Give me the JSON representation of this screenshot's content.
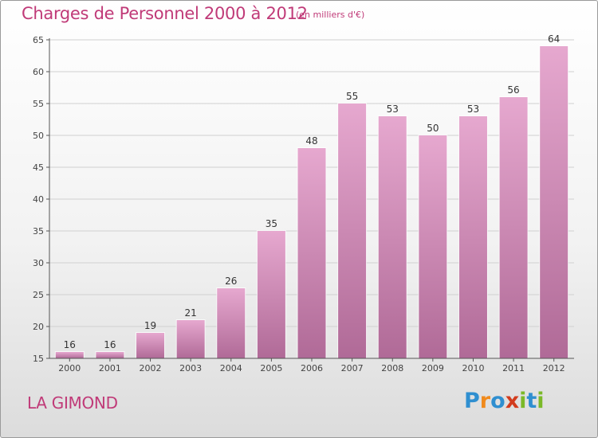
{
  "title": "Charges de Personnel 2000 à 2012",
  "subtitle": "(en milliers d'€)",
  "commune": "LA GIMOND",
  "logo": {
    "text": "Proxiti",
    "letters": [
      {
        "ch": "P",
        "color": "#2f8fd0"
      },
      {
        "ch": "r",
        "color": "#f08a1c"
      },
      {
        "ch": "o",
        "color": "#2f8fd0"
      },
      {
        "ch": "x",
        "color": "#d23c1e"
      },
      {
        "ch": "i",
        "color": "#7bb928"
      },
      {
        "ch": "t",
        "color": "#2f8fd0"
      },
      {
        "ch": "i",
        "color": "#7bb928"
      }
    ]
  },
  "colors": {
    "accent": "#c03a78",
    "bar_top": "#e6a8cf",
    "bar_bottom": "#b06a97",
    "grid": "#d0d0d0",
    "axis": "#555555"
  },
  "chart_data": {
    "type": "bar",
    "categories": [
      "2000",
      "2001",
      "2002",
      "2003",
      "2004",
      "2005",
      "2006",
      "2007",
      "2008",
      "2009",
      "2010",
      "2011",
      "2012"
    ],
    "values": [
      16,
      16,
      19,
      21,
      26,
      35,
      48,
      55,
      53,
      50,
      53,
      56,
      64
    ],
    "data_labels": [
      "16",
      "16",
      "19",
      "21",
      "26",
      "35",
      "48",
      "55",
      "53",
      "50",
      "53",
      "56",
      "64"
    ],
    "yticks": [
      "15",
      "20",
      "25",
      "30",
      "35",
      "40",
      "45",
      "50",
      "55",
      "60",
      "65"
    ],
    "ylim": [
      15,
      65
    ],
    "grid": true,
    "legend": "none"
  }
}
